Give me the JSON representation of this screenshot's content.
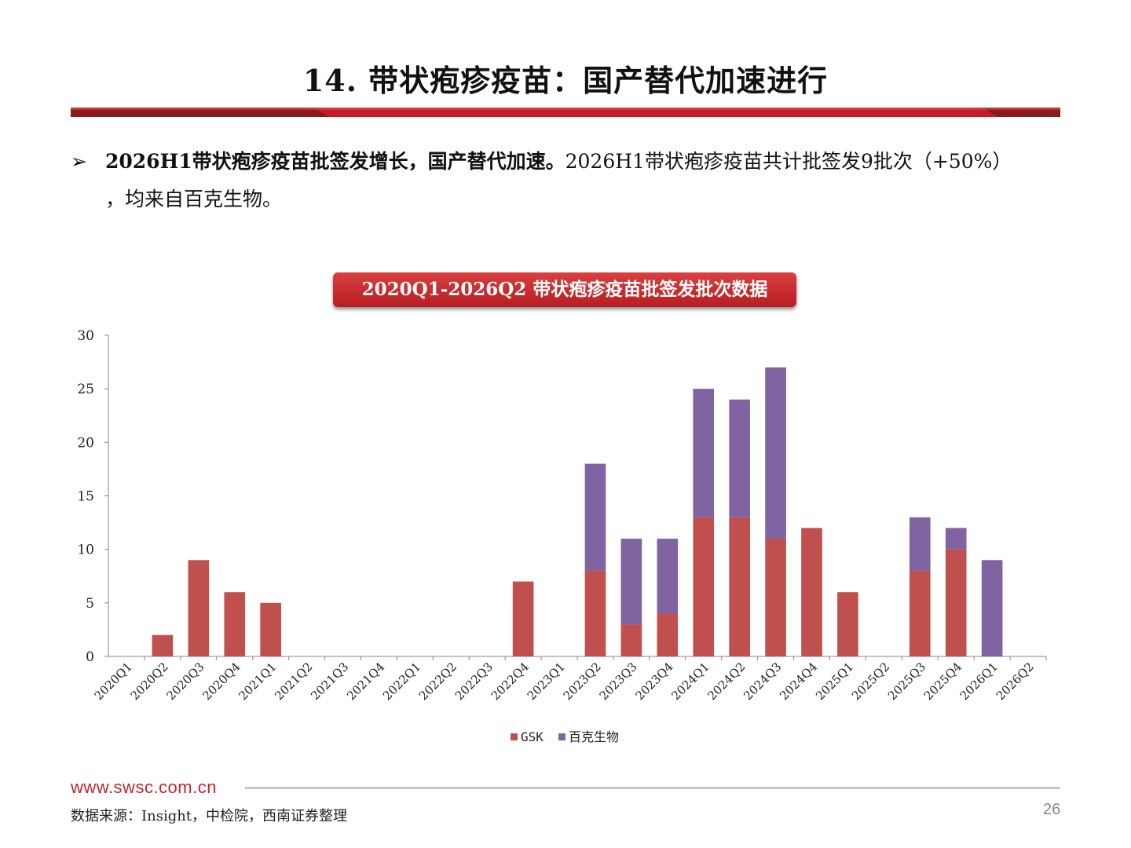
{
  "slide": {
    "title": "14. 带状疱疹疫苗：国产替代加速进行",
    "bullet_mark": "➢",
    "bullet_bold": "2026H1带状疱疹疫苗批签发增长，国产替代加速。",
    "bullet_rest": "2026H1带状疱疹疫苗共计批签发9批次（+50%）",
    "bullet_line2": "，均来自百克生物。",
    "chart_title": "2020Q1-2026Q2 带状疱疹疫苗批签发批次数据",
    "footer_url": "www.swsc.com.cn",
    "source": "数据来源：Insight，中检院，西南证券整理",
    "page_number": "26"
  },
  "colors": {
    "red_bar": "#c8192a",
    "dark_red": "#8b1a1a",
    "gsk": "#c0504d",
    "baike": "#8064a2"
  },
  "chart_data": {
    "type": "bar",
    "stacked": true,
    "categories": [
      "2020Q1",
      "2020Q2",
      "2020Q3",
      "2020Q4",
      "2021Q1",
      "2021Q2",
      "2021Q3",
      "2021Q4",
      "2022Q1",
      "2022Q2",
      "2022Q3",
      "2022Q4",
      "2023Q1",
      "2023Q2",
      "2023Q3",
      "2023Q4",
      "2024Q1",
      "2024Q2",
      "2024Q3",
      "2024Q4",
      "2025Q1",
      "2025Q2",
      "2025Q3",
      "2025Q4",
      "2026Q1",
      "2026Q2"
    ],
    "series": [
      {
        "name": "GSK",
        "color": "#c0504d",
        "values": [
          0,
          2,
          9,
          6,
          5,
          0,
          0,
          0,
          0,
          0,
          0,
          7,
          0,
          8,
          3,
          4,
          13,
          13,
          11,
          12,
          6,
          0,
          8,
          10,
          0,
          0
        ]
      },
      {
        "name": "百克生物",
        "color": "#8064a2",
        "values": [
          0,
          0,
          0,
          0,
          0,
          0,
          0,
          0,
          0,
          0,
          0,
          0,
          0,
          10,
          8,
          7,
          12,
          11,
          16,
          0,
          0,
          0,
          5,
          2,
          9,
          0
        ]
      }
    ],
    "yticks": [
      0,
      5,
      10,
      15,
      20,
      25,
      30
    ],
    "ylim": [
      0,
      30
    ],
    "legend_position": "bottom"
  }
}
